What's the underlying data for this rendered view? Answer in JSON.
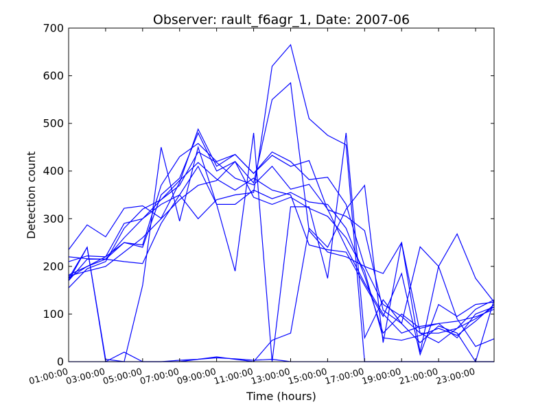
{
  "chart_data": {
    "type": "line",
    "title": "Observer: rault_f6agr_1, Date: 2007-06",
    "xlabel": "Time (hours)",
    "ylabel": "Detection count",
    "ylim": [
      0,
      700
    ],
    "xlim": [
      "01:00:00",
      "24:00:00"
    ],
    "x_ticks": [
      "01:00:00",
      "03:00:00",
      "05:00:00",
      "07:00:00",
      "09:00:00",
      "11:00:00",
      "13:00:00",
      "15:00:00",
      "17:00:00",
      "19:00:00",
      "21:00:00",
      "23:00:00"
    ],
    "y_ticks": [
      0,
      100,
      200,
      300,
      400,
      500,
      600,
      700
    ],
    "grid": false,
    "line_color": "#0000ff",
    "x": [
      "01:00:00",
      "02:00:00",
      "03:00:00",
      "04:00:00",
      "05:00:00",
      "06:00:00",
      "07:00:00",
      "08:00:00",
      "09:00:00",
      "10:00:00",
      "11:00:00",
      "12:00:00",
      "13:00:00",
      "14:00:00",
      "15:00:00",
      "16:00:00",
      "17:00:00",
      "18:00:00",
      "19:00:00",
      "20:00:00",
      "21:00:00",
      "22:00:00",
      "23:00:00",
      "24:00:00"
    ],
    "series": [
      {
        "values": [
          235,
          287,
          262,
          322,
          327,
          301,
          376,
          488,
          410,
          435,
          395,
          433,
          410,
          422,
          319,
          305,
          275,
          108,
          80,
          241,
          200,
          90,
          32,
          48
        ]
      },
      {
        "values": [
          210,
          222,
          220,
          250,
          245,
          370,
          430,
          458,
          420,
          435,
          395,
          440,
          420,
          382,
          387,
          330,
          200,
          185,
          250,
          20,
          200,
          268,
          175,
          125
        ]
      },
      {
        "values": [
          220,
          216,
          215,
          260,
          300,
          340,
          370,
          440,
          418,
          385,
          371,
          410,
          362,
          372,
          320,
          240,
          165,
          100,
          60,
          74,
          80,
          85,
          94,
          110
        ]
      },
      {
        "values": [
          155,
          195,
          210,
          280,
          320,
          340,
          380,
          418,
          383,
          360,
          385,
          360,
          350,
          245,
          235,
          230,
          160,
          95,
          185,
          15,
          120,
          95,
          120,
          125
        ]
      },
      {
        "values": [
          182,
          200,
          220,
          290,
          300,
          330,
          350,
          410,
          330,
          330,
          360,
          342,
          355,
          335,
          330,
          280,
          180,
          60,
          100,
          70,
          80,
          50,
          100,
          115
        ]
      },
      {
        "values": [
          170,
          215,
          215,
          250,
          240,
          350,
          385,
          480,
          400,
          420,
          345,
          330,
          345,
          322,
          305,
          260,
          190,
          50,
          45,
          55,
          70,
          55,
          85,
          120
        ]
      },
      {
        "values": [
          180,
          190,
          200,
          230,
          260,
          300,
          340,
          370,
          380,
          420,
          375,
          550,
          585,
          275,
          230,
          220,
          200,
          120,
          95,
          60,
          60,
          70,
          90,
          115
        ]
      },
      {
        "values": [
          175,
          200,
          215,
          210,
          206,
          290,
          350,
          300,
          340,
          350,
          355,
          620,
          665,
          510,
          475,
          455,
          0,
          0,
          0,
          0,
          0,
          0,
          0,
          0
        ]
      },
      {
        "values": [
          175,
          240,
          5,
          0,
          160,
          450,
          295,
          450,
          330,
          190,
          480,
          0,
          325,
          325,
          175,
          480,
          50,
          130,
          80,
          40,
          75,
          60,
          0,
          130
        ]
      },
      {
        "values": [
          170,
          240,
          0,
          20,
          0,
          0,
          0,
          5,
          10,
          5,
          0,
          45,
          60,
          280,
          240,
          320,
          370,
          40,
          250,
          60,
          40,
          70,
          110,
          130
        ]
      },
      {
        "values": [
          0,
          0,
          0,
          0,
          0,
          0,
          3,
          5,
          8,
          6,
          3,
          5,
          0,
          0,
          0,
          0,
          0,
          0,
          0,
          0,
          0,
          0,
          0,
          0
        ]
      }
    ]
  }
}
